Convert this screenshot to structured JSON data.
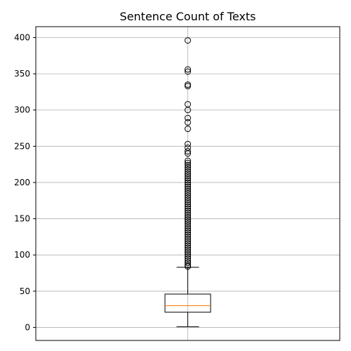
{
  "chart_data": {
    "type": "box",
    "title": "Sentence Count of Texts",
    "xlabel": "",
    "ylabel": "",
    "ylim": [
      -18,
      415
    ],
    "yticks": [
      0,
      50,
      100,
      150,
      200,
      250,
      300,
      350,
      400
    ],
    "grid": true,
    "colors": {
      "box": "#000000",
      "median": "#ff7f0e",
      "grid": "#b0b0b0"
    },
    "box": {
      "whisker_low": 1,
      "q1": 21,
      "median": 30,
      "q3": 46,
      "whisker_high": 83
    },
    "outliers": [
      396,
      356,
      353,
      335,
      333,
      308,
      300,
      289,
      283,
      274,
      253,
      248,
      243,
      240,
      230,
      227,
      224,
      221,
      218,
      215,
      212,
      209,
      206,
      203,
      200,
      197,
      194,
      191,
      188,
      185,
      182,
      179,
      176,
      173,
      170,
      167,
      164,
      161,
      158,
      155,
      152,
      149,
      146,
      143,
      140,
      137,
      134,
      131,
      128,
      125,
      122,
      119,
      116,
      113,
      110,
      107,
      104,
      101,
      98,
      95,
      92,
      89,
      86,
      84
    ]
  }
}
